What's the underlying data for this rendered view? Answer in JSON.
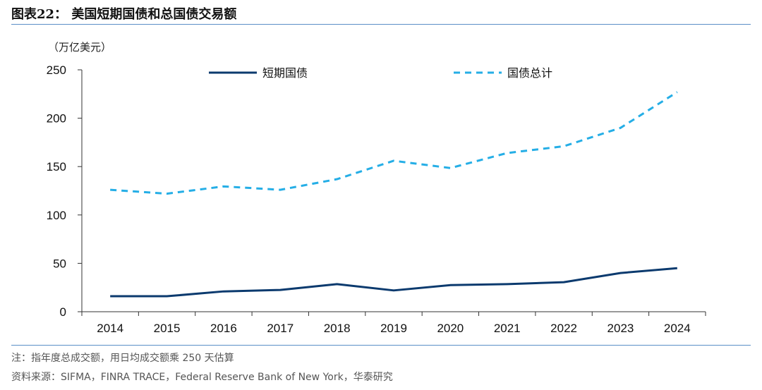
{
  "figure": {
    "title": "图表22：  美国短期国债和总国债交易额",
    "unit": "（万亿美元）",
    "note": "注：指年度总成交额，用日均成交额乘 250 天估算",
    "source": "资料来源：SIFMA，FINRA TRACE，Federal Reserve Bank of New York，华泰研究"
  },
  "chart_data": {
    "type": "line",
    "x": [
      "2014",
      "2015",
      "2016",
      "2017",
      "2018",
      "2019",
      "2020",
      "2021",
      "2022",
      "2023",
      "2024"
    ],
    "ylim": [
      0,
      250
    ],
    "yticks": [
      0,
      50,
      100,
      150,
      200,
      250
    ],
    "legend_position": "top",
    "series": [
      {
        "name": "短期国债",
        "style": "solid",
        "color": "#0b3a6e",
        "values": [
          16,
          16,
          21,
          22.5,
          28.5,
          22,
          27.5,
          28.5,
          30.5,
          40,
          45
        ]
      },
      {
        "name": "国债总计",
        "style": "dashed",
        "color": "#25aee6",
        "values": [
          126,
          122,
          129.5,
          126,
          137,
          156,
          148.5,
          164,
          171,
          190,
          227
        ]
      }
    ]
  }
}
